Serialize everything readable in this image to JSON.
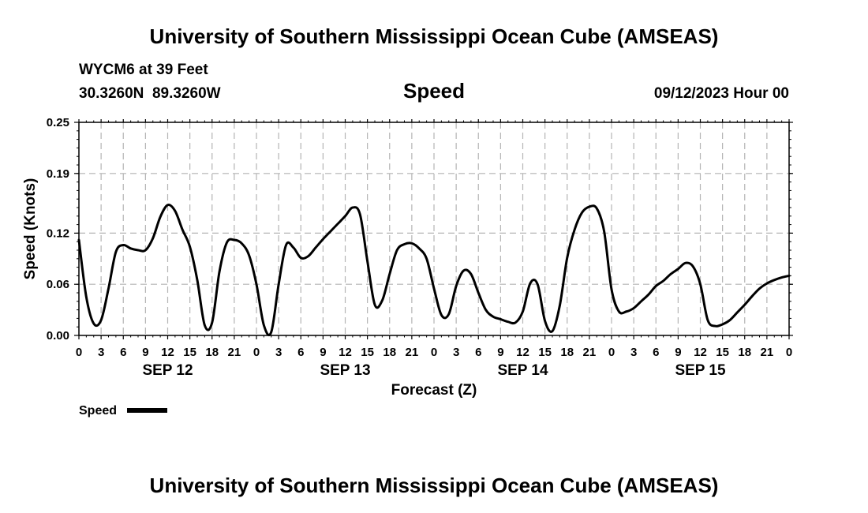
{
  "header": {
    "title": "University of Southern Mississippi Ocean Cube (AMSEAS)",
    "station": "WYCM6 at 39 Feet",
    "location": "30.3260N  89.3260W",
    "variable": "Speed",
    "datetime": "09/12/2023 Hour 00"
  },
  "footer": {
    "title": "University of Southern Mississippi Ocean Cube (AMSEAS)"
  },
  "chart_data": {
    "type": "line",
    "xlabel": "Forecast (Z)",
    "ylabel": "Speed (Knots)",
    "xlim": [
      0,
      96
    ],
    "ylim": [
      0,
      0.25
    ],
    "y_ticks": [
      0.0,
      0.06,
      0.12,
      0.19,
      0.25
    ],
    "y_tick_labels": [
      "0.00",
      "0.06",
      "0.12",
      "0.19",
      "0.25"
    ],
    "x_tick_labels": [
      "0",
      "3",
      "6",
      "9",
      "12",
      "15",
      "18",
      "21",
      "0",
      "3",
      "6",
      "9",
      "12",
      "15",
      "18",
      "21",
      "0",
      "3",
      "6",
      "9",
      "12",
      "15",
      "18",
      "21",
      "0",
      "3",
      "6",
      "9",
      "12",
      "15",
      "18",
      "21",
      "0"
    ],
    "day_labels": [
      {
        "label": "SEP 12",
        "x_hour": 12
      },
      {
        "label": "SEP 13",
        "x_hour": 36
      },
      {
        "label": "SEP 14",
        "x_hour": 60
      },
      {
        "label": "SEP 15",
        "x_hour": 84
      }
    ],
    "grid": true,
    "legend": {
      "position": "bottom-left",
      "entries": [
        "Speed"
      ]
    },
    "series": [
      {
        "name": "Speed",
        "color": "#000000",
        "x": [
          0,
          1,
          2,
          3,
          4,
          5,
          6,
          7,
          8,
          9,
          10,
          11,
          12,
          13,
          14,
          15,
          16,
          17,
          18,
          19,
          20,
          21,
          22,
          23,
          24,
          25,
          26,
          27,
          28,
          29,
          30,
          31,
          32,
          33,
          34,
          35,
          36,
          37,
          38,
          39,
          40,
          41,
          42,
          43,
          44,
          45,
          46,
          47,
          48,
          49,
          50,
          51,
          52,
          53,
          54,
          55,
          56,
          57,
          58,
          59,
          60,
          61,
          62,
          63,
          64,
          65,
          66,
          67,
          68,
          69,
          70,
          71,
          72,
          73,
          74,
          75,
          76,
          77,
          78,
          79,
          80,
          81,
          82,
          83,
          84,
          85,
          86,
          87,
          88,
          89,
          90,
          91,
          92,
          93,
          94,
          95,
          96
        ],
        "values": [
          0.112,
          0.045,
          0.014,
          0.018,
          0.055,
          0.098,
          0.106,
          0.102,
          0.1,
          0.1,
          0.114,
          0.139,
          0.153,
          0.146,
          0.124,
          0.104,
          0.065,
          0.012,
          0.015,
          0.075,
          0.109,
          0.112,
          0.108,
          0.094,
          0.06,
          0.012,
          0.004,
          0.06,
          0.106,
          0.103,
          0.091,
          0.093,
          0.103,
          0.113,
          0.122,
          0.131,
          0.14,
          0.15,
          0.142,
          0.087,
          0.036,
          0.041,
          0.072,
          0.1,
          0.107,
          0.108,
          0.102,
          0.09,
          0.055,
          0.024,
          0.025,
          0.058,
          0.076,
          0.072,
          0.05,
          0.03,
          0.022,
          0.019,
          0.016,
          0.015,
          0.028,
          0.061,
          0.06,
          0.017,
          0.005,
          0.035,
          0.091,
          0.124,
          0.144,
          0.151,
          0.149,
          0.122,
          0.054,
          0.028,
          0.028,
          0.032,
          0.04,
          0.048,
          0.058,
          0.064,
          0.072,
          0.078,
          0.085,
          0.081,
          0.06,
          0.018,
          0.011,
          0.013,
          0.018,
          0.027,
          0.036,
          0.046,
          0.055,
          0.061,
          0.065,
          0.068,
          0.07
        ]
      }
    ]
  }
}
